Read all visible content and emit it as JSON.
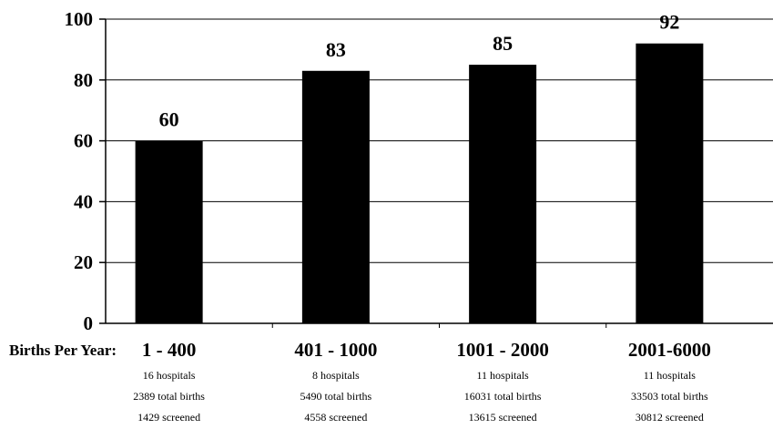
{
  "chart_data": {
    "type": "bar",
    "categories": [
      "1 - 400",
      "401 - 1000",
      "1001 - 2000",
      "2001-6000"
    ],
    "values": [
      60,
      83,
      85,
      92
    ],
    "data_labels": [
      "60",
      "83",
      "85",
      "92"
    ],
    "ylim": [
      0,
      100
    ],
    "yticks": [
      "0",
      "20",
      "40",
      "60",
      "80",
      "100"
    ],
    "ytick_values": [
      0,
      20,
      40,
      60,
      80,
      100
    ],
    "grid": true,
    "bar_color": "#000000",
    "xlabel": "Births Per Year:",
    "category_notes": [
      [
        "16 hospitals",
        "2389 total births",
        "1429 screened"
      ],
      [
        "8 hospitals",
        "5490 total births",
        "4558 screened"
      ],
      [
        "11 hospitals",
        "16031  total births",
        "13615 screened"
      ],
      [
        "11 hospitals",
        "33503 total births",
        "30812 screened"
      ]
    ]
  }
}
